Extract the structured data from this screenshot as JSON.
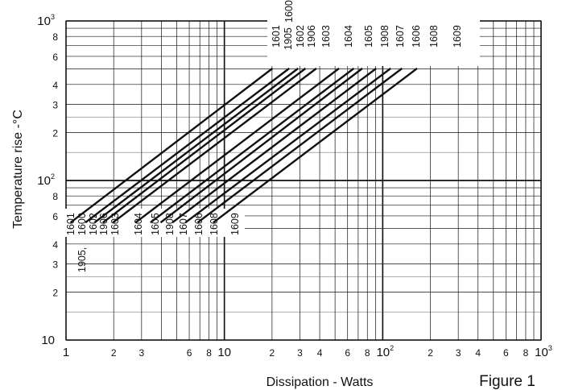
{
  "figure_label": "Figure 1",
  "chart_data": {
    "type": "line",
    "xlabel": "Dissipation - Watts",
    "ylabel": "Temperature rise -°C",
    "x_scale": "log",
    "y_scale": "log",
    "xlim": [
      1,
      1000
    ],
    "ylim": [
      10,
      1000
    ],
    "grid": true,
    "x_ticks": [
      {
        "base": "1",
        "sup": "",
        "major": true
      },
      {
        "base": "2",
        "sup": "",
        "major": false
      },
      {
        "base": "3",
        "sup": "",
        "major": false
      },
      {
        "base": "6",
        "sup": "",
        "major": false
      },
      {
        "base": "8",
        "sup": "",
        "major": false
      },
      {
        "base": "10",
        "sup": "",
        "major": true
      },
      {
        "base": "2",
        "sup": "",
        "major": false
      },
      {
        "base": "3",
        "sup": "",
        "major": false
      },
      {
        "base": "4",
        "sup": "",
        "major": false
      },
      {
        "base": "6",
        "sup": "",
        "major": false
      },
      {
        "base": "8",
        "sup": "",
        "major": false
      },
      {
        "base": "10",
        "sup": "2",
        "major": true
      },
      {
        "base": "2",
        "sup": "",
        "major": false
      },
      {
        "base": "3",
        "sup": "",
        "major": false
      },
      {
        "base": "4",
        "sup": "",
        "major": false
      },
      {
        "base": "6",
        "sup": "",
        "major": false
      },
      {
        "base": "8",
        "sup": "",
        "major": false
      },
      {
        "base": "10",
        "sup": "3",
        "major": true
      }
    ],
    "x_tick_values": [
      1,
      2,
      3,
      6,
      8,
      10,
      20,
      30,
      40,
      60,
      80,
      100,
      200,
      300,
      400,
      600,
      800,
      1000
    ],
    "y_ticks": [
      {
        "base": "10",
        "sup": "",
        "major": true
      },
      {
        "base": "2",
        "sup": "",
        "major": false
      },
      {
        "base": "3",
        "sup": "",
        "major": false
      },
      {
        "base": "4",
        "sup": "",
        "major": false
      },
      {
        "base": "6",
        "sup": "",
        "major": false
      },
      {
        "base": "8",
        "sup": "",
        "major": false
      },
      {
        "base": "10",
        "sup": "2",
        "major": true
      },
      {
        "base": "2",
        "sup": "",
        "major": false
      },
      {
        "base": "3",
        "sup": "",
        "major": false
      },
      {
        "base": "4",
        "sup": "",
        "major": false
      },
      {
        "base": "6",
        "sup": "",
        "major": false
      },
      {
        "base": "8",
        "sup": "",
        "major": false
      },
      {
        "base": "10",
        "sup": "3",
        "major": true
      }
    ],
    "y_tick_values": [
      10,
      20,
      30,
      40,
      60,
      80,
      100,
      200,
      300,
      400,
      600,
      800,
      1000
    ],
    "series": [
      {
        "name": "1601",
        "x": [
          1.08,
          19.9
        ],
        "y": [
          55,
          500
        ]
      },
      {
        "name": "1905, 1600",
        "x": [
          1.34,
          25.4
        ],
        "y": [
          55,
          500
        ]
      },
      {
        "name": "1602",
        "x": [
          1.53,
          28.9
        ],
        "y": [
          55,
          500
        ]
      },
      {
        "name": "1906",
        "x": [
          1.73,
          32.2
        ],
        "y": [
          55,
          500
        ]
      },
      {
        "name": "1603",
        "x": [
          2.0,
          37.7
        ],
        "y": [
          55,
          500
        ]
      },
      {
        "name": "1604",
        "x": [
          2.78,
          52.4
        ],
        "y": [
          55,
          500
        ]
      },
      {
        "name": "1605",
        "x": [
          3.45,
          65.0
        ],
        "y": [
          55,
          500
        ]
      },
      {
        "name": "1908",
        "x": [
          4.0,
          73.5
        ],
        "y": [
          55,
          500
        ]
      },
      {
        "name": "1607",
        "x": [
          4.75,
          90.0
        ],
        "y": [
          55,
          500
        ]
      },
      {
        "name": "1606",
        "x": [
          5.74,
          111
        ],
        "y": [
          55,
          500
        ]
      },
      {
        "name": "1608",
        "x": [
          6.86,
          131
        ],
        "y": [
          55,
          500
        ]
      },
      {
        "name": "1609",
        "x": [
          8.61,
          163
        ],
        "y": [
          55,
          500
        ]
      }
    ],
    "bottom_labels": [
      "1601",
      "1600",
      "1602",
      "1906",
      "1603",
      "1604",
      "1605",
      "1908",
      "1607",
      "1606",
      "1608",
      "1609"
    ],
    "bottom_label_1905": "1905,",
    "top_labels": [
      "1601",
      "1905",
      "1600",
      "1602",
      "1906",
      "1603",
      "1604",
      "1605",
      "1908",
      "1607",
      "1606",
      "1608",
      "1609"
    ]
  }
}
